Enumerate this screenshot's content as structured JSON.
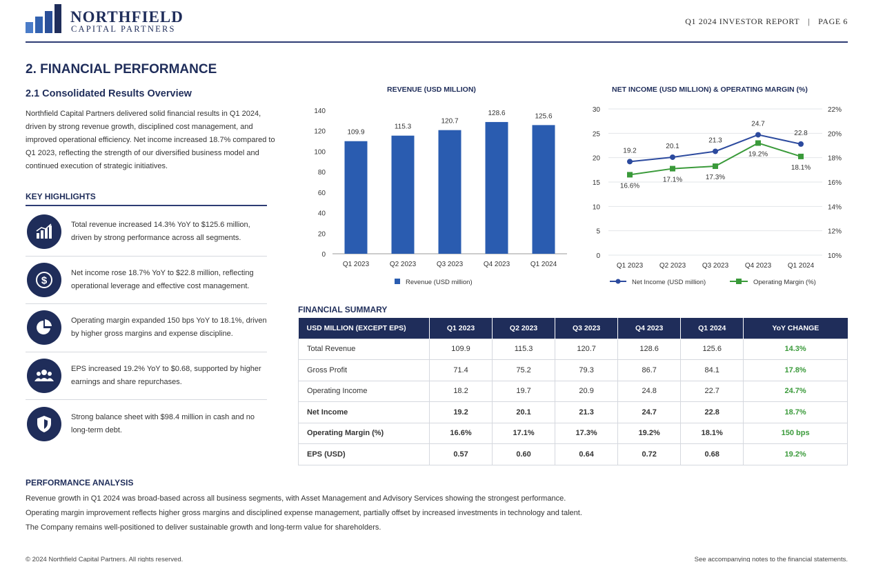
{
  "header": {
    "brand_name": "NORTHFIELD",
    "brand_sub": "CAPITAL PARTNERS",
    "report_name": "Q1 2024 INVESTOR REPORT",
    "separator": "|",
    "page_label": "PAGE 6"
  },
  "section": {
    "title": "2. FINANCIAL PERFORMANCE",
    "subtitle": "2.1 Consolidated Results Overview",
    "intro": "Northfield Capital Partners delivered solid financial results in Q1 2024, driven by strong revenue growth, disciplined cost management, and improved operational efficiency. Net income increased 18.7% compared to Q1 2023, reflecting the strength of our diversified business model and continued execution of strategic initiatives."
  },
  "highlights": {
    "title": "KEY HIGHLIGHTS",
    "items": [
      {
        "icon": "bar-chart-icon",
        "text": "Total revenue increased 14.3% YoY to $125.6 million, driven by strong performance across all segments."
      },
      {
        "icon": "dollar-icon",
        "text": "Net income rose 18.7% YoY to $22.8 million, reflecting operational leverage and effective cost management."
      },
      {
        "icon": "pie-chart-icon",
        "text": "Operating margin expanded 150 bps YoY to 18.1%, driven by higher gross margins and expense discipline."
      },
      {
        "icon": "users-icon",
        "text": "EPS increased 19.2% YoY to $0.68, supported by higher earnings and share repurchases."
      },
      {
        "icon": "shield-icon",
        "text": "Strong balance sheet with $98.4 million in cash and no long-term debt."
      }
    ]
  },
  "colors": {
    "navy": "#1f2d5a",
    "bar_blue": "#2a5cb0",
    "line_blue": "#2c4a9e",
    "line_green": "#3a9a3a",
    "positive": "#3a9a3a"
  },
  "chart_data": [
    {
      "type": "bar",
      "title": "REVENUE (USD MILLION)",
      "categories": [
        "Q1 2023",
        "Q2 2023",
        "Q3 2023",
        "Q4 2023",
        "Q1 2024"
      ],
      "series": [
        {
          "name": "Revenue (USD million)",
          "values": [
            109.9,
            115.3,
            120.7,
            128.6,
            125.6
          ]
        }
      ],
      "data_labels": [
        "109.9",
        "115.3",
        "120.7",
        "128.6",
        "125.6"
      ],
      "ylim": [
        0,
        140
      ],
      "yticks": [
        "0",
        "20",
        "40",
        "60",
        "80",
        "100",
        "120",
        "140"
      ],
      "grid": false,
      "legend": "bottom"
    },
    {
      "type": "line",
      "title": "NET INCOME (USD MILLION) & OPERATING MARGIN (%)",
      "categories": [
        "Q1 2023",
        "Q2 2023",
        "Q3 2023",
        "Q4 2023",
        "Q1 2024"
      ],
      "series": [
        {
          "name": "Net Income (USD million)",
          "axis": "left",
          "values": [
            19.2,
            20.1,
            21.3,
            24.7,
            22.8
          ],
          "labels": [
            "19.2",
            "20.1",
            "21.3",
            "24.7",
            "22.8"
          ]
        },
        {
          "name": "Operating Margin (%)",
          "axis": "right",
          "values": [
            16.6,
            17.1,
            17.3,
            19.2,
            18.1
          ],
          "labels": [
            "16.6%",
            "17.1%",
            "17.3%",
            "19.2%",
            "18.1%"
          ]
        }
      ],
      "ylim_left": [
        0,
        30
      ],
      "yticks_left": [
        "0",
        "5",
        "10",
        "15",
        "20",
        "25",
        "30"
      ],
      "ylim_right": [
        10,
        22
      ],
      "yticks_right": [
        "10%",
        "12%",
        "14%",
        "16%",
        "18%",
        "20%",
        "22%"
      ],
      "grid": true,
      "legend": "bottom"
    }
  ],
  "financial_summary": {
    "title": "FINANCIAL SUMMARY",
    "headers": [
      "USD MILLION (EXCEPT EPS)",
      "Q1 2023",
      "Q2 2023",
      "Q3 2023",
      "Q4 2023",
      "Q1 2024",
      "YoY CHANGE"
    ],
    "rows": [
      {
        "label": "Total Revenue",
        "values": [
          "109.9",
          "115.3",
          "120.7",
          "128.6",
          "125.6"
        ],
        "change": "14.3%"
      },
      {
        "label": "Gross Profit",
        "values": [
          "71.4",
          "75.2",
          "79.3",
          "86.7",
          "84.1"
        ],
        "change": "17.8%"
      },
      {
        "label": "Operating Income",
        "values": [
          "18.2",
          "19.7",
          "20.9",
          "24.8",
          "22.7"
        ],
        "change": "24.7%"
      },
      {
        "label": "Net Income",
        "values": [
          "19.2",
          "20.1",
          "21.3",
          "24.7",
          "22.8"
        ],
        "change": "18.7%"
      },
      {
        "label": "Operating Margin (%)",
        "values": [
          "16.6%",
          "17.1%",
          "17.3%",
          "19.2%",
          "18.1%"
        ],
        "change": "150 bps"
      },
      {
        "label": "EPS (USD)",
        "values": [
          "0.57",
          "0.60",
          "0.64",
          "0.72",
          "0.68"
        ],
        "change": "19.2%"
      }
    ]
  },
  "analysis": {
    "title": "PERFORMANCE ANALYSIS",
    "paragraphs": [
      "Revenue growth in Q1 2024 was broad-based across all business segments, with Asset Management and Advisory Services showing the strongest performance.",
      "Operating margin improvement reflects higher gross margins and disciplined expense management, partially offset by increased investments in technology and talent.",
      "The Company remains well-positioned to deliver sustainable growth and long-term value for shareholders."
    ]
  },
  "footer": {
    "left": "© 2024 Northfield Capital Partners. All rights reserved.",
    "right": "See accompanying notes to the financial statements."
  }
}
